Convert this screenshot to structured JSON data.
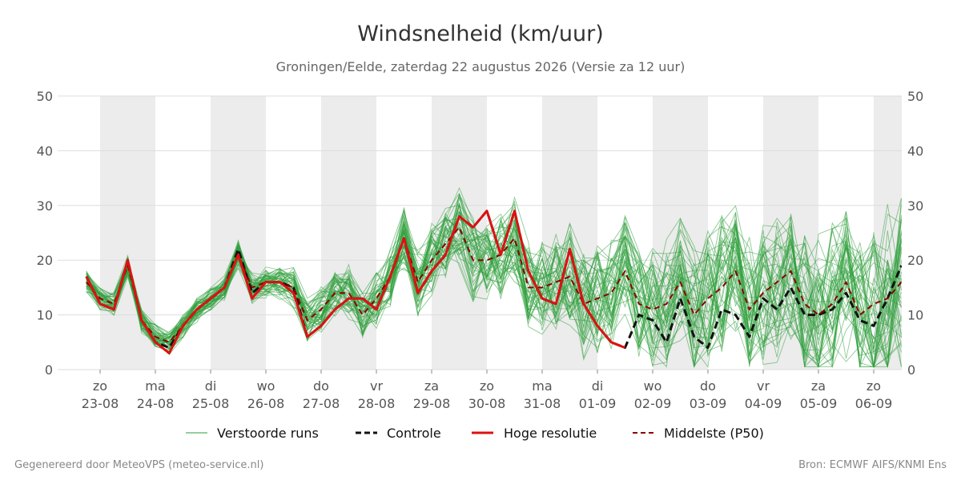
{
  "chart_data": {
    "type": "line",
    "title": "Windsnelheid (km/uur)",
    "subtitle": "Groningen/Eelde, zaterdag 22 augustus 2026 (Versie za 12 uur)",
    "footer_left": "Gegenereerd door MeteoVPS (meteo-service.nl)",
    "footer_right": "Bron: ECMWF AIFS/KNMI Ens",
    "ylim": [
      0,
      50
    ],
    "yticks": [
      0,
      10,
      20,
      30,
      40,
      50
    ],
    "xlim": [
      -0.25,
      14.5
    ],
    "grid": true,
    "legend_position": "bottom",
    "x_ticks": [
      {
        "day": "zo",
        "date": "23-08"
      },
      {
        "day": "ma",
        "date": "24-08"
      },
      {
        "day": "di",
        "date": "25-08"
      },
      {
        "day": "wo",
        "date": "26-08"
      },
      {
        "day": "do",
        "date": "27-08"
      },
      {
        "day": "vr",
        "date": "28-08"
      },
      {
        "day": "za",
        "date": "29-08"
      },
      {
        "day": "zo",
        "date": "30-08"
      },
      {
        "day": "ma",
        "date": "31-08"
      },
      {
        "day": "di",
        "date": "01-09"
      },
      {
        "day": "wo",
        "date": "02-09"
      },
      {
        "day": "do",
        "date": "03-09"
      },
      {
        "day": "vr",
        "date": "04-09"
      },
      {
        "day": "za",
        "date": "05-09"
      },
      {
        "day": "zo",
        "date": "06-09"
      }
    ],
    "colors": {
      "ensemble": "#2e9e3a",
      "control": "#111111",
      "hires": "#dd1111",
      "median": "#8b0000",
      "band": "#ececec",
      "grid": "#dddddd"
    },
    "legend": [
      {
        "key": "ensemble",
        "label": "Verstoorde runs"
      },
      {
        "key": "control",
        "label": "Controle"
      },
      {
        "key": "hires",
        "label": "Hoge resolutie"
      },
      {
        "key": "median",
        "label": "Middelste (P50)"
      }
    ],
    "x_step": 0.25,
    "ensemble_count": 50,
    "series": [
      {
        "key": "control",
        "name": "Controle",
        "x_start": -0.25,
        "x_step": 0.25,
        "values": [
          17,
          12,
          11,
          20,
          9,
          5,
          4,
          8,
          11,
          13,
          15,
          22,
          14,
          16,
          16,
          15,
          6,
          8,
          11,
          13,
          13,
          11,
          17,
          24,
          14,
          18,
          21,
          28,
          26,
          29,
          21,
          29,
          18,
          13,
          12,
          22,
          12,
          8,
          5,
          4,
          10,
          9,
          5,
          13,
          6,
          4,
          11,
          10,
          6,
          13,
          11,
          15,
          10,
          10,
          11,
          14,
          9,
          8,
          13,
          19
        ]
      },
      {
        "key": "hires",
        "name": "Hoge resolutie",
        "x_start": -0.25,
        "x_step": 0.25,
        "values": [
          17,
          12,
          11,
          20,
          9,
          5,
          3,
          8,
          11,
          13,
          15,
          21,
          13,
          16,
          16,
          14,
          6,
          8,
          11,
          13,
          13,
          11,
          17,
          24,
          14,
          18,
          21,
          28,
          26,
          29,
          21,
          29,
          18,
          13,
          12,
          22,
          12,
          8,
          5,
          4
        ]
      },
      {
        "key": "median",
        "name": "Middelste (P50)",
        "x_start": -0.25,
        "x_step": 0.25,
        "values": [
          16,
          13,
          12,
          19,
          9,
          6,
          5,
          8,
          11,
          13,
          15,
          21,
          15,
          16,
          16,
          15,
          9,
          11,
          14,
          14,
          10,
          13,
          17,
          24,
          16,
          20,
          23,
          26,
          20,
          20,
          21,
          24,
          15,
          15,
          16,
          17,
          12,
          13,
          14,
          18,
          12,
          11,
          12,
          16,
          10,
          13,
          15,
          18,
          11,
          14,
          16,
          18,
          12,
          10,
          12,
          16,
          10,
          12,
          13,
          16
        ]
      }
    ]
  }
}
